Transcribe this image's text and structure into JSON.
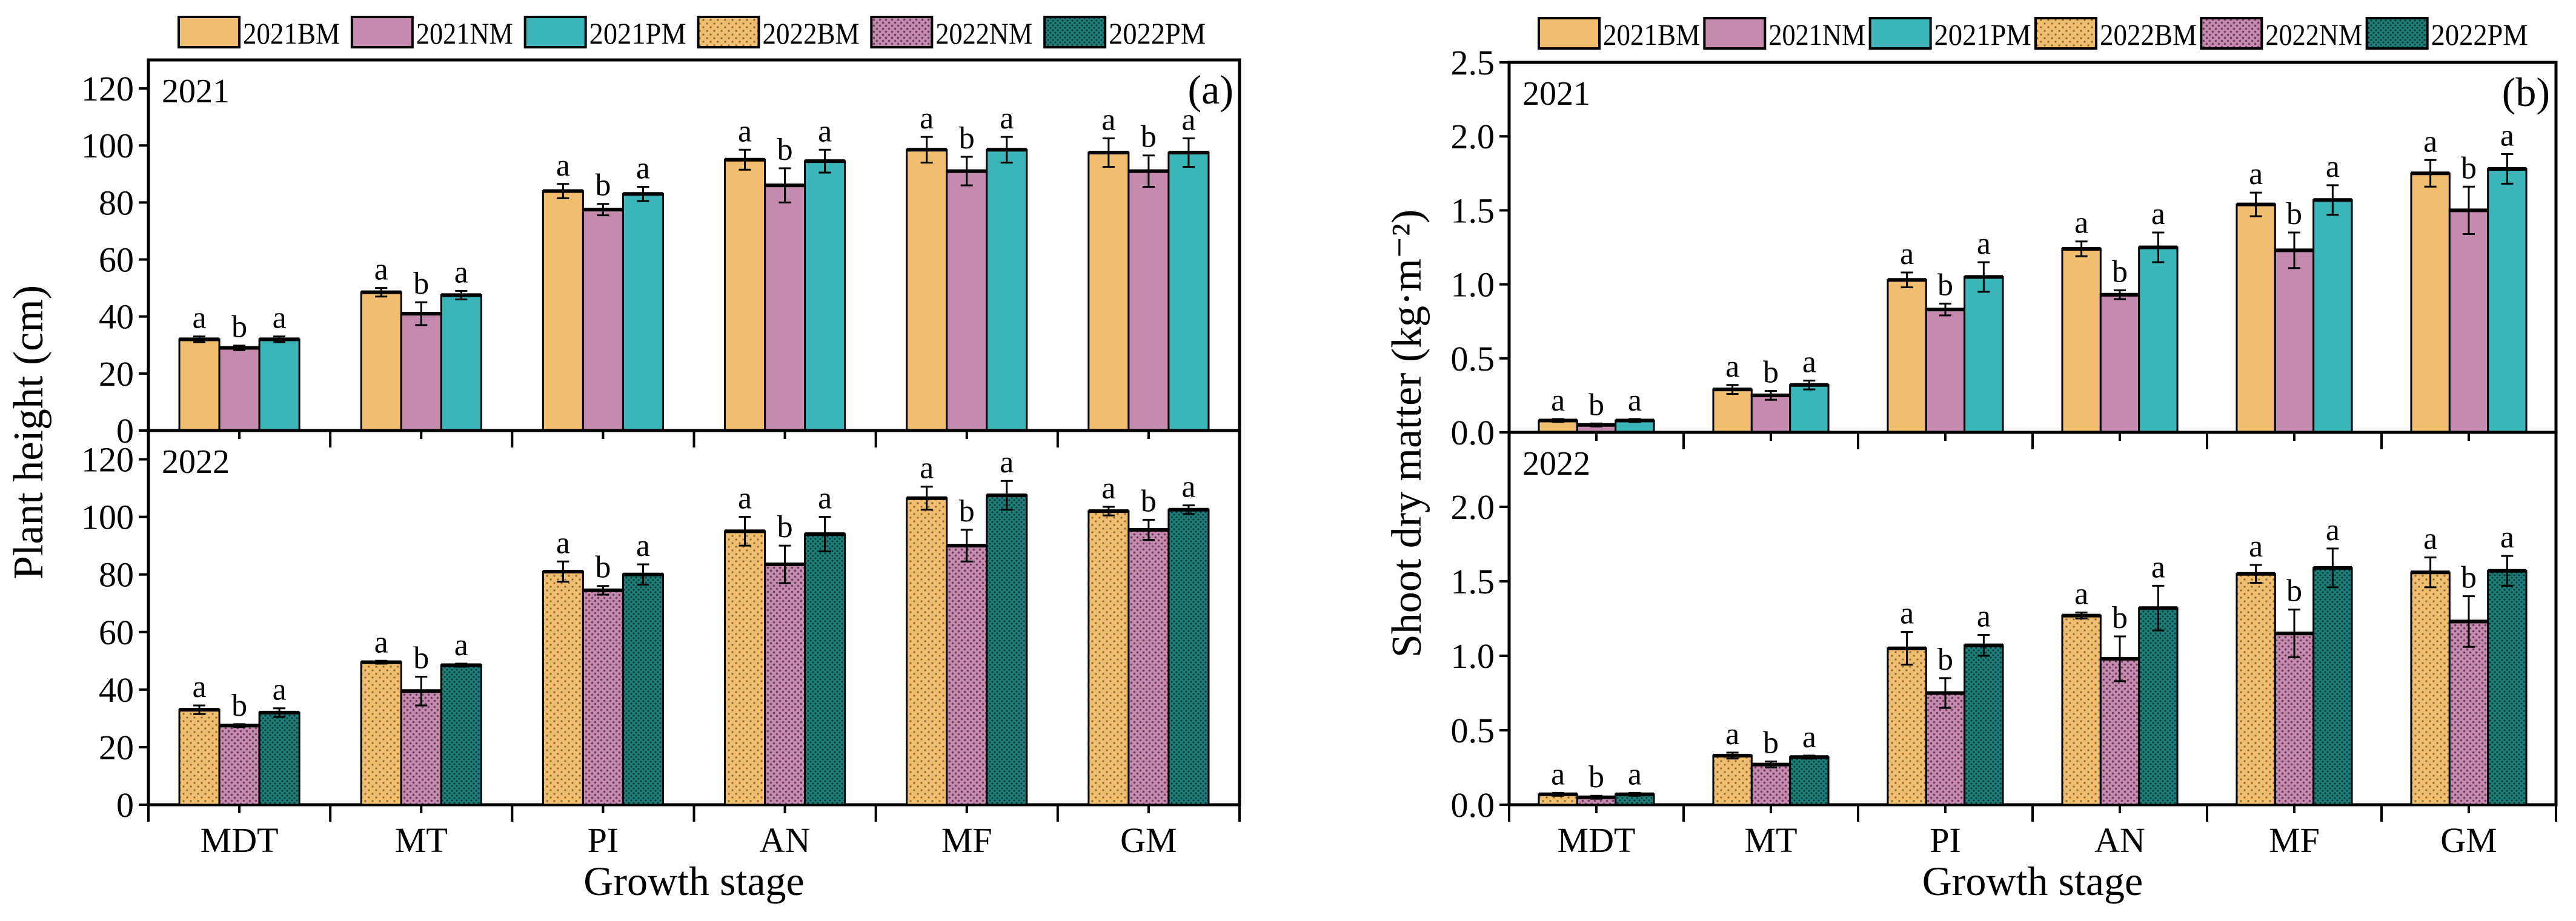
{
  "colors": {
    "2021BM": "#F0BE6E",
    "2021NM": "#C48BAE",
    "2021PM": "#3BB5B8",
    "2022BM": "#F0BE6E",
    "2022NM": "#C48BAE",
    "2022PM": "#1E7F7C"
  },
  "chart_data": [
    {
      "type": "bar",
      "panel_label": "(a)",
      "ylabel": "Plant height (cm)",
      "xlabel": "Growth stage",
      "categories": [
        "MDT",
        "MT",
        "PI",
        "AN",
        "MF",
        "GM"
      ],
      "legend": [
        "2021BM",
        "2021NM",
        "2021PM",
        "2022BM",
        "2022NM",
        "2022PM"
      ],
      "legend_position": "top",
      "ylim": [
        0,
        130
      ],
      "panels": [
        {
          "year": "2021",
          "yticks": [
            "0",
            "20",
            "40",
            "60",
            "80",
            "100",
            "120"
          ],
          "tick_values": [
            0,
            20,
            40,
            60,
            80,
            100,
            120
          ],
          "series": [
            {
              "name": "2021BM",
              "values": [
                32,
                48.5,
                84,
                95,
                98.5,
                97.5
              ],
              "errors": [
                1,
                1.5,
                2.5,
                3.5,
                4.5,
                5
              ],
              "letters": [
                "a",
                "a",
                "a",
                "a",
                "a",
                "a"
              ]
            },
            {
              "name": "2021NM",
              "values": [
                29,
                41,
                77.5,
                86,
                91,
                91
              ],
              "errors": [
                0.8,
                4,
                2,
                6,
                5,
                5.5
              ],
              "letters": [
                "b",
                "b",
                "b",
                "b",
                "b",
                "b"
              ]
            },
            {
              "name": "2021PM",
              "values": [
                32,
                47.5,
                83,
                94.5,
                98.5,
                97.5
              ],
              "errors": [
                1,
                1.5,
                2.5,
                4,
                4.5,
                5
              ],
              "letters": [
                "a",
                "a",
                "a",
                "a",
                "a",
                "a"
              ]
            }
          ]
        },
        {
          "year": "2022",
          "yticks": [
            "0",
            "20",
            "40",
            "60",
            "80",
            "100",
            "120"
          ],
          "tick_values": [
            0,
            20,
            40,
            60,
            80,
            100,
            120
          ],
          "series": [
            {
              "name": "2022BM",
              "values": [
                33,
                49.5,
                81,
                95,
                106.5,
                102
              ],
              "errors": [
                1.5,
                0.5,
                3.5,
                5,
                4,
                1.5
              ],
              "letters": [
                "a",
                "a",
                "a",
                "a",
                "a",
                "a"
              ]
            },
            {
              "name": "2022NM",
              "values": [
                27.5,
                39.5,
                74.5,
                83.5,
                90,
                95.5
              ],
              "errors": [
                0.5,
                5,
                1.5,
                6.5,
                5.5,
                3.5
              ],
              "letters": [
                "b",
                "b",
                "b",
                "b",
                "b",
                "b"
              ]
            },
            {
              "name": "2022PM",
              "values": [
                32,
                48.5,
                80,
                94,
                107.5,
                102.5
              ],
              "errors": [
                1.5,
                0.5,
                3.5,
                6,
                5,
                1.5
              ],
              "letters": [
                "a",
                "a",
                "a",
                "a",
                "a",
                "a"
              ]
            }
          ]
        }
      ]
    },
    {
      "type": "bar",
      "panel_label": "(b)",
      "ylabel": "Shoot dry matter (kg·m⁻²)",
      "xlabel": "Growth stage",
      "categories": [
        "MDT",
        "MT",
        "PI",
        "AN",
        "MF",
        "GM"
      ],
      "legend": [
        "2021BM",
        "2021NM",
        "2021PM",
        "2022BM",
        "2022NM",
        "2022PM"
      ],
      "legend_position": "top",
      "ylim": [
        0,
        2.5
      ],
      "panels": [
        {
          "year": "2021",
          "yticks": [
            "0.0",
            "0.5",
            "1.0",
            "1.5",
            "2.0",
            "2.5"
          ],
          "tick_values": [
            0,
            0.5,
            1,
            1.5,
            2,
            2.5
          ],
          "series": [
            {
              "name": "2021BM",
              "values": [
                0.08,
                0.29,
                1.03,
                1.24,
                1.54,
                1.75
              ],
              "errors": [
                0.01,
                0.03,
                0.05,
                0.05,
                0.08,
                0.09
              ],
              "letters": [
                "a",
                "a",
                "a",
                "a",
                "a",
                "a"
              ]
            },
            {
              "name": "2021NM",
              "values": [
                0.05,
                0.25,
                0.83,
                0.93,
                1.23,
                1.5
              ],
              "errors": [
                0.01,
                0.03,
                0.04,
                0.03,
                0.12,
                0.16
              ],
              "letters": [
                "b",
                "b",
                "b",
                "b",
                "b",
                "b"
              ]
            },
            {
              "name": "2021PM",
              "values": [
                0.08,
                0.32,
                1.05,
                1.25,
                1.57,
                1.78
              ],
              "errors": [
                0.01,
                0.03,
                0.1,
                0.1,
                0.1,
                0.1
              ],
              "letters": [
                "a",
                "a",
                "a",
                "a",
                "a",
                "a"
              ]
            }
          ]
        },
        {
          "year": "2022",
          "yticks": [
            "0.0",
            "0.5",
            "1.0",
            "1.5",
            "2.0"
          ],
          "tick_values": [
            0,
            0.5,
            1,
            1.5,
            2
          ],
          "series": [
            {
              "name": "2022BM",
              "values": [
                0.07,
                0.33,
                1.05,
                1.27,
                1.55,
                1.56
              ],
              "errors": [
                0.01,
                0.02,
                0.11,
                0.02,
                0.06,
                0.1
              ],
              "letters": [
                "a",
                "a",
                "a",
                "a",
                "a",
                "a"
              ]
            },
            {
              "name": "2022NM",
              "values": [
                0.05,
                0.27,
                0.75,
                0.98,
                1.15,
                1.23
              ],
              "errors": [
                0.01,
                0.02,
                0.1,
                0.15,
                0.16,
                0.17
              ],
              "letters": [
                "b",
                "b",
                "b",
                "b",
                "b",
                "b"
              ]
            },
            {
              "name": "2022PM",
              "values": [
                0.07,
                0.32,
                1.07,
                1.32,
                1.59,
                1.57
              ],
              "errors": [
                0.01,
                0.01,
                0.07,
                0.15,
                0.13,
                0.1
              ],
              "letters": [
                "a",
                "a",
                "a",
                "a",
                "a",
                "a"
              ]
            }
          ]
        }
      ]
    }
  ]
}
